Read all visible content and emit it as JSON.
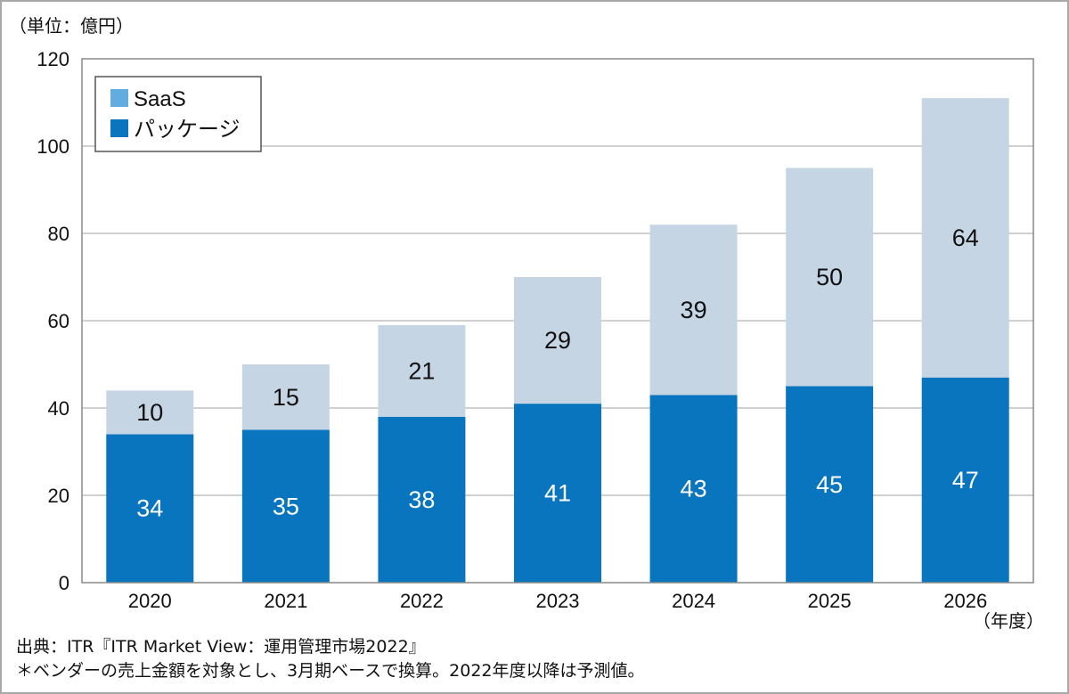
{
  "chart_data": {
    "type": "bar",
    "stacked": true,
    "unit_label": "（単位：億円）",
    "x_unit_label": "（年度）",
    "categories": [
      "2020",
      "2021",
      "2022",
      "2023",
      "2024",
      "2025",
      "2026"
    ],
    "series": [
      {
        "name": "パッケージ",
        "color": "#0a75bf",
        "values": [
          34,
          35,
          38,
          41,
          43,
          45,
          47
        ],
        "label_color": "#ffffff"
      },
      {
        "name": "SaaS",
        "color": "#c6d5e4",
        "values": [
          10,
          15,
          21,
          29,
          39,
          50,
          64
        ],
        "label_color": "#111111"
      }
    ],
    "ylim": [
      0,
      120
    ],
    "yticks": [
      0,
      20,
      40,
      60,
      80,
      100,
      120
    ],
    "ytick_labels": [
      "0",
      "20",
      "40",
      "60",
      "80",
      "100",
      "120"
    ],
    "legend": [
      {
        "name": "SaaS",
        "color": "#62ace0"
      },
      {
        "name": "パッケージ",
        "color": "#0a75bf"
      }
    ],
    "legend_position": "top-left",
    "grid": true
  },
  "footnotes": {
    "source": "出典：ITR『ITR Market View：運用管理市場2022』",
    "note": "＊ベンダーの売上金額を対象とし、3月期ベースで換算。2022年度以降は予測値。"
  }
}
